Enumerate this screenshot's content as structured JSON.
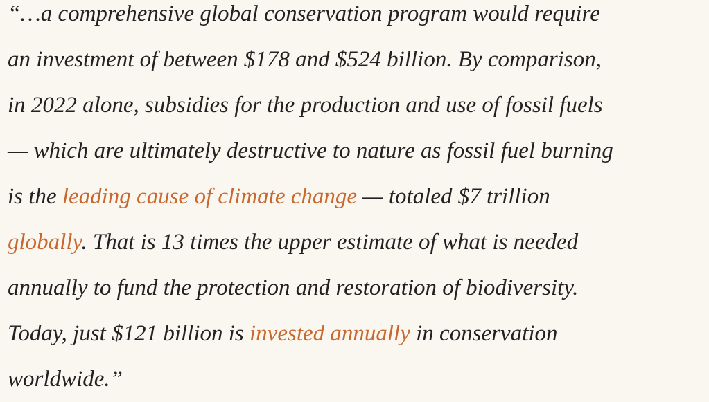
{
  "quote": {
    "lines": [
      [
        "“…a comprehensive global conservation program would require"
      ],
      [
        "an investment of between $178 and $524 billion. By comparison,"
      ],
      [
        "in 2022 alone, subsidies for the production and use of fossil fuels"
      ],
      [
        "— which are ultimately destructive to nature as fossil fuel burning"
      ],
      [
        "is the ",
        "leading cause of climate change",
        " — totaled $7 trillion"
      ],
      [
        "globally",
        ". That is 13 times the upper estimate of what is needed"
      ],
      [
        "annually to fund the protection and restoration of biodiversity."
      ],
      [
        "Today, just $121 billion is ",
        "invested annually",
        " in conservation"
      ],
      [
        "worldwide.”"
      ]
    ]
  }
}
